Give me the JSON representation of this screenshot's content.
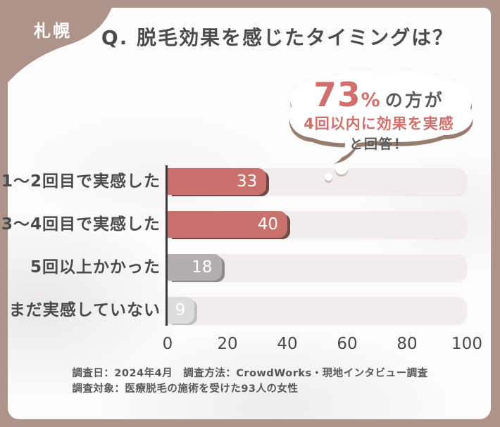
{
  "region_badge": "札幌",
  "title": "Q. 脱毛効果を感じたタイミングは？",
  "callout": {
    "percent": "73",
    "percent_sign": "%",
    "percent_suffix": "の方が",
    "highlight": "4回以内に効果を実感",
    "tail_text": "と回答！"
  },
  "chart_data": {
    "type": "bar",
    "orientation": "horizontal",
    "categories": [
      "1〜2回目で実感した",
      "3〜4回目で実感した",
      "5回以上かかった",
      "まだ実感していない"
    ],
    "values": [
      33,
      40,
      18,
      9
    ],
    "xlim": [
      0,
      100
    ],
    "xticks": [
      0,
      20,
      40,
      60,
      80,
      100
    ],
    "bar_colors": [
      "#c9716d",
      "#c9716d",
      "#b3afaf",
      "#dedbdb"
    ],
    "bar_shadow_colors": [
      "#6e4a47",
      "#6e4a47",
      "#8f8b8b",
      "#c2bfbf"
    ],
    "track_color": "#f2eded",
    "value_label_color": "#ffffff",
    "grid": false,
    "legend": false,
    "title": "Q. 脱毛効果を感じたタイミングは？",
    "xlabel": "",
    "ylabel": ""
  },
  "footer": {
    "line1": "調査日：2024年4月　調査方法：CrowdWorks・現地インタビュー調査",
    "line2": "調査対象：医療脱毛の施術を受けた93人の女性"
  },
  "colors": {
    "frame": "#ae938a",
    "card_bg": "#fcfbfa",
    "title_text": "#4b4b4b",
    "accent_red": "#d0706c",
    "axis_line": "#3a3a3a",
    "tick_text": "#4a4a4a",
    "footer_text": "#575757",
    "bubble_shadow": "#977d70"
  }
}
